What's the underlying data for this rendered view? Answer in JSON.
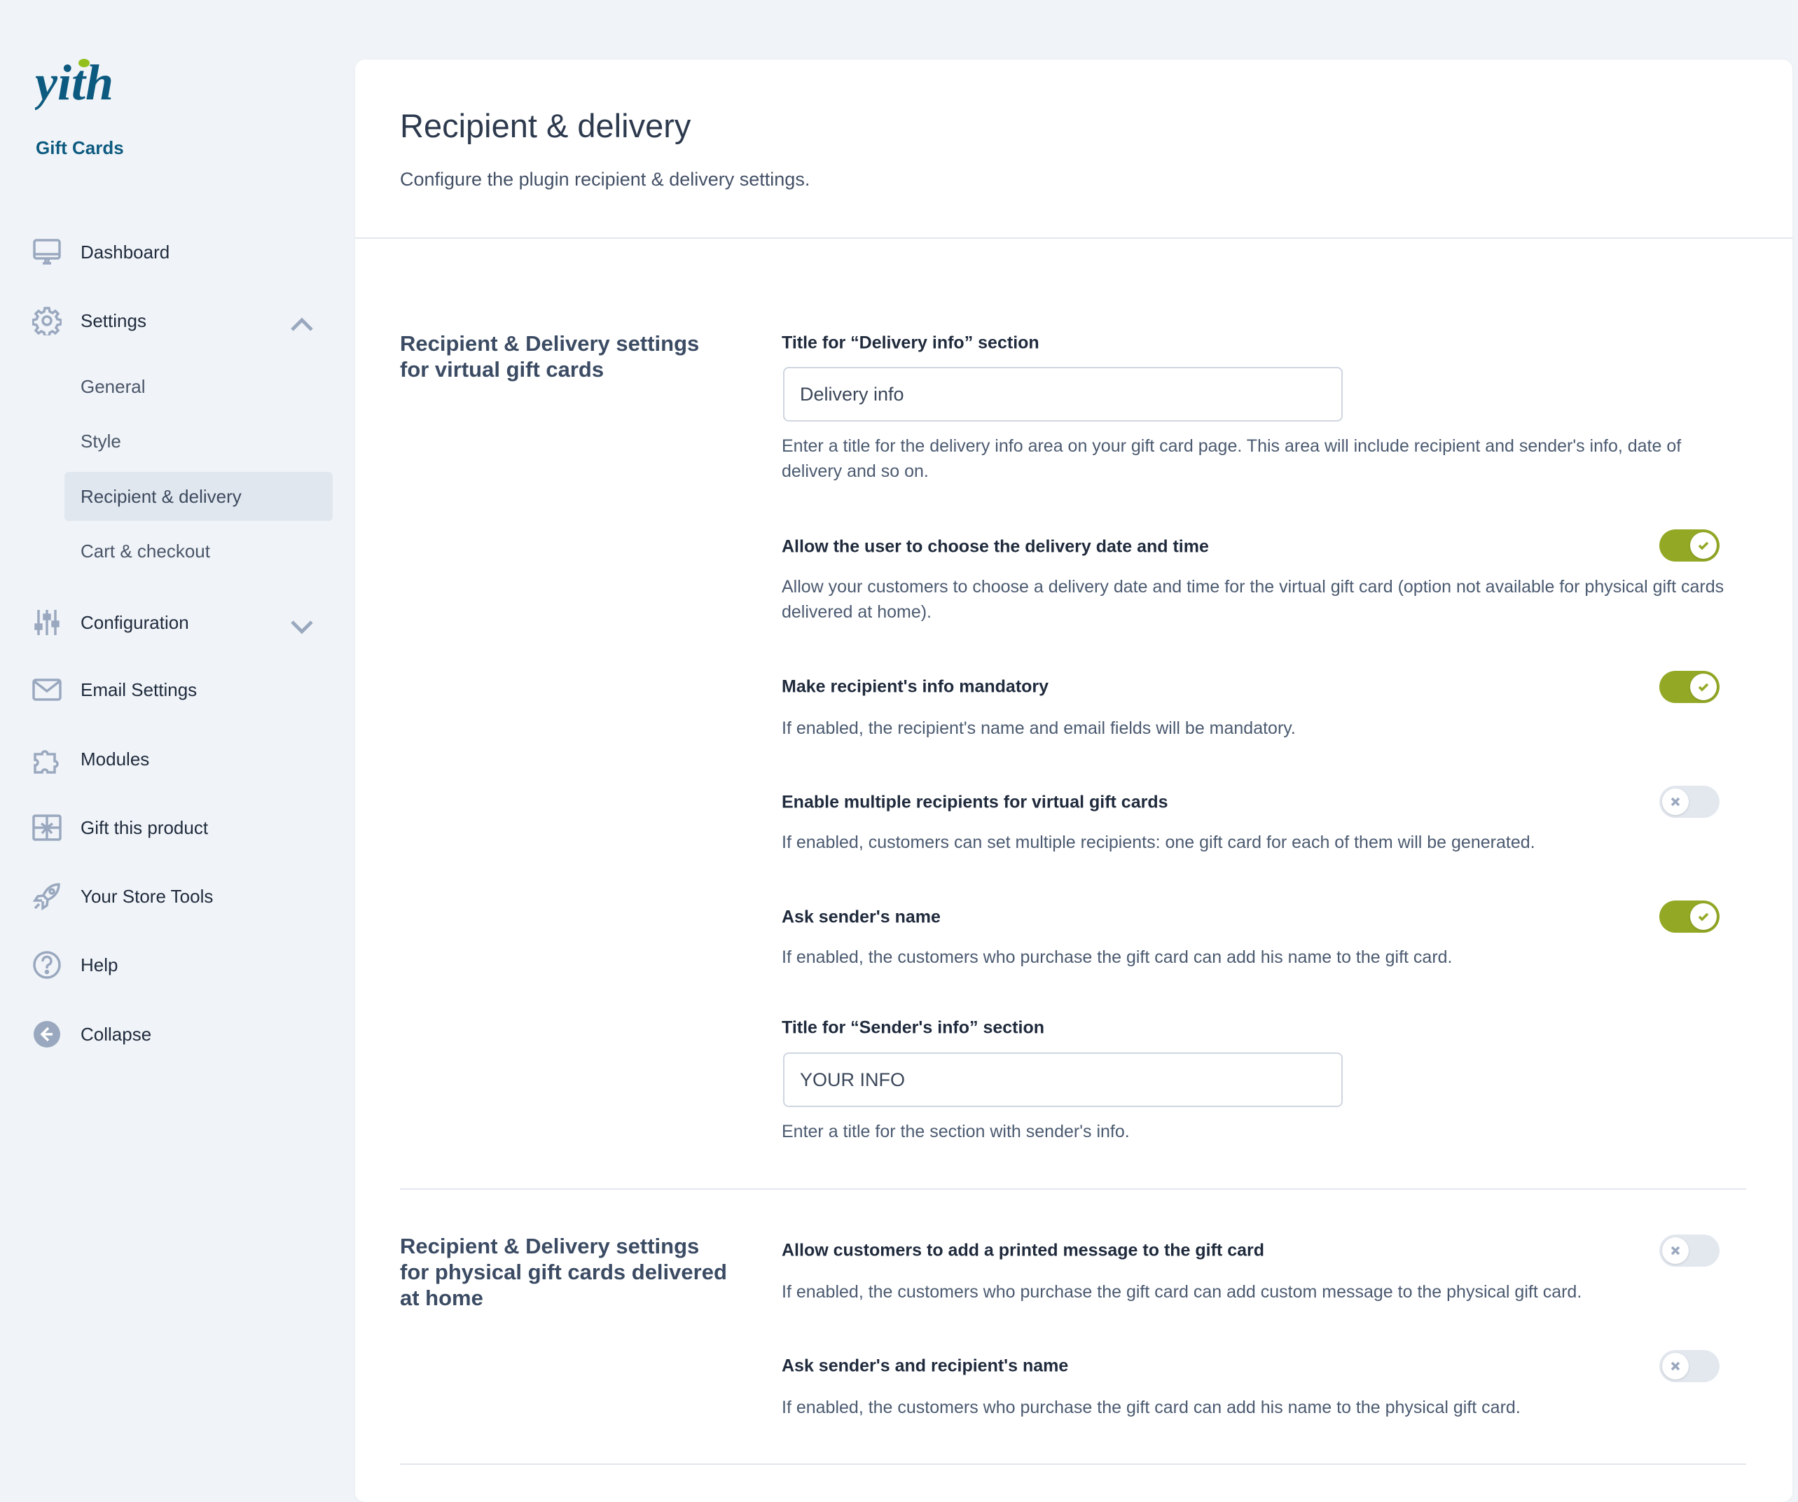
{
  "brand": {
    "logo_text": "yith",
    "product": "Gift Cards",
    "colors": {
      "primary": "#0d5a80",
      "accent": "#93c01f"
    }
  },
  "sidebar": {
    "items": [
      {
        "label": "Dashboard",
        "icon": "monitor-icon"
      },
      {
        "label": "Settings",
        "icon": "gear-icon",
        "expanded": true
      },
      {
        "label": "Configuration",
        "icon": "sliders-icon",
        "expanded": false
      },
      {
        "label": "Email Settings",
        "icon": "envelope-icon"
      },
      {
        "label": "Modules",
        "icon": "puzzle-icon"
      },
      {
        "label": "Gift this product",
        "icon": "gift-icon"
      },
      {
        "label": "Your Store Tools",
        "icon": "rocket-icon"
      },
      {
        "label": "Help",
        "icon": "help-icon"
      },
      {
        "label": "Collapse",
        "icon": "collapse-icon"
      }
    ],
    "settings_sub": [
      {
        "label": "General"
      },
      {
        "label": "Style"
      },
      {
        "label": "Recipient & delivery",
        "active": true
      },
      {
        "label": "Cart & checkout"
      }
    ]
  },
  "header": {
    "title": "Recipient & delivery",
    "subtitle": "Configure the plugin recipient & delivery settings."
  },
  "sections": [
    {
      "title": "Recipient & Delivery settings for virtual gift cards",
      "fields": [
        {
          "label": "Title for “Delivery info” section",
          "type": "text",
          "value": "Delivery info",
          "help": "Enter a title for the delivery info area on your gift card page. This area will include recipient and sender's info, date of delivery and so on."
        },
        {
          "label": "Allow the user to choose the delivery date and time",
          "type": "toggle",
          "value": true,
          "help": "Allow your customers to choose a delivery date and time for the virtual gift card (option not available for physical gift cards delivered at home)."
        },
        {
          "label": "Make recipient's info mandatory",
          "type": "toggle",
          "value": true,
          "help": "If enabled, the recipient's name and email fields will be mandatory."
        },
        {
          "label": "Enable multiple recipients for virtual gift cards",
          "type": "toggle",
          "value": false,
          "help": "If enabled, customers can set multiple recipients: one gift card for each of them will be generated."
        },
        {
          "label": "Ask sender's name",
          "type": "toggle",
          "value": true,
          "help": "If enabled, the customers who purchase the gift card can add his name to the gift card."
        },
        {
          "label": "Title for “Sender's info” section",
          "type": "text",
          "value": "YOUR INFO",
          "help": "Enter a title for the section with sender's info."
        }
      ]
    },
    {
      "title": "Recipient & Delivery settings for physical gift cards delivered at home",
      "fields": [
        {
          "label": "Allow customers to add a printed message to the gift card",
          "type": "toggle",
          "value": false,
          "help": "If enabled, the customers who purchase the gift card can add custom message to the physical gift card."
        },
        {
          "label": "Ask sender's and recipient's name",
          "type": "toggle",
          "value": false,
          "help": "If enabled, the customers who purchase the gift card can add his name to the physical gift card."
        }
      ]
    }
  ],
  "colors": {
    "toggle_on": "#93a825",
    "toggle_off": "#e3e8ef"
  }
}
